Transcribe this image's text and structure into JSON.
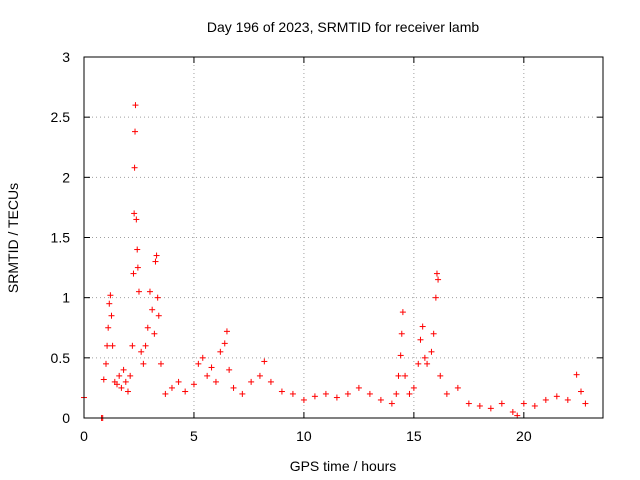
{
  "chart_data": {
    "type": "scatter",
    "title": "Day 196 of 2023, SRMTID for receiver lamb",
    "xlabel": "GPS time / hours",
    "ylabel": "SRMTID / TECUs",
    "xlim": [
      0,
      23.6
    ],
    "ylim": [
      0,
      3
    ],
    "xticks": [
      0,
      5,
      10,
      15,
      20
    ],
    "yticks": [
      0,
      0.5,
      1,
      1.5,
      2,
      2.5,
      3
    ],
    "xtick_labels": [
      "0",
      "5",
      "10",
      "15",
      "20"
    ],
    "ytick_labels": [
      "0",
      "0.5",
      "1",
      "1.5",
      "2",
      "2.5",
      "3"
    ],
    "grid": true,
    "marker": "+",
    "series": [
      {
        "name": "SRMTID",
        "color": "#ff0000",
        "points": [
          [
            0.0,
            0.17
          ],
          [
            0.8,
            0.0
          ],
          [
            0.85,
            0.0
          ],
          [
            0.9,
            0.32
          ],
          [
            1.0,
            0.45
          ],
          [
            1.05,
            0.6
          ],
          [
            1.1,
            0.75
          ],
          [
            1.15,
            0.95
          ],
          [
            1.2,
            1.02
          ],
          [
            1.25,
            0.85
          ],
          [
            1.3,
            0.6
          ],
          [
            1.4,
            0.3
          ],
          [
            1.5,
            0.28
          ],
          [
            1.6,
            0.35
          ],
          [
            1.7,
            0.25
          ],
          [
            1.8,
            0.4
          ],
          [
            1.9,
            0.3
          ],
          [
            2.0,
            0.22
          ],
          [
            2.1,
            0.35
          ],
          [
            2.2,
            0.6
          ],
          [
            2.25,
            1.2
          ],
          [
            2.28,
            1.7
          ],
          [
            2.3,
            2.08
          ],
          [
            2.32,
            2.38
          ],
          [
            2.34,
            2.6
          ],
          [
            2.38,
            1.65
          ],
          [
            2.42,
            1.4
          ],
          [
            2.45,
            1.25
          ],
          [
            2.5,
            1.05
          ],
          [
            2.6,
            0.55
          ],
          [
            2.7,
            0.45
          ],
          [
            2.8,
            0.6
          ],
          [
            2.9,
            0.75
          ],
          [
            3.0,
            1.05
          ],
          [
            3.1,
            0.9
          ],
          [
            3.2,
            0.7
          ],
          [
            3.25,
            1.3
          ],
          [
            3.3,
            1.35
          ],
          [
            3.35,
            1.0
          ],
          [
            3.4,
            0.85
          ],
          [
            3.5,
            0.45
          ],
          [
            3.7,
            0.2
          ],
          [
            4.0,
            0.25
          ],
          [
            4.3,
            0.3
          ],
          [
            4.6,
            0.22
          ],
          [
            5.0,
            0.28
          ],
          [
            5.2,
            0.45
          ],
          [
            5.4,
            0.5
          ],
          [
            5.6,
            0.35
          ],
          [
            5.8,
            0.42
          ],
          [
            6.0,
            0.3
          ],
          [
            6.2,
            0.55
          ],
          [
            6.4,
            0.62
          ],
          [
            6.5,
            0.72
          ],
          [
            6.6,
            0.4
          ],
          [
            6.8,
            0.25
          ],
          [
            7.2,
            0.2
          ],
          [
            7.6,
            0.3
          ],
          [
            8.0,
            0.35
          ],
          [
            8.2,
            0.47
          ],
          [
            8.5,
            0.3
          ],
          [
            9.0,
            0.22
          ],
          [
            9.5,
            0.2
          ],
          [
            10.0,
            0.15
          ],
          [
            10.5,
            0.18
          ],
          [
            11.0,
            0.2
          ],
          [
            11.5,
            0.17
          ],
          [
            12.0,
            0.2
          ],
          [
            12.5,
            0.25
          ],
          [
            13.0,
            0.2
          ],
          [
            13.5,
            0.15
          ],
          [
            14.0,
            0.12
          ],
          [
            14.2,
            0.2
          ],
          [
            14.3,
            0.35
          ],
          [
            14.4,
            0.52
          ],
          [
            14.45,
            0.7
          ],
          [
            14.5,
            0.88
          ],
          [
            14.6,
            0.35
          ],
          [
            14.8,
            0.2
          ],
          [
            15.0,
            0.25
          ],
          [
            15.2,
            0.45
          ],
          [
            15.3,
            0.65
          ],
          [
            15.4,
            0.76
          ],
          [
            15.5,
            0.5
          ],
          [
            15.6,
            0.45
          ],
          [
            15.8,
            0.55
          ],
          [
            15.9,
            0.7
          ],
          [
            16.0,
            1.0
          ],
          [
            16.05,
            1.2
          ],
          [
            16.1,
            1.15
          ],
          [
            16.2,
            0.35
          ],
          [
            16.5,
            0.2
          ],
          [
            17.0,
            0.25
          ],
          [
            17.5,
            0.12
          ],
          [
            18.0,
            0.1
          ],
          [
            18.5,
            0.08
          ],
          [
            19.0,
            0.12
          ],
          [
            19.5,
            0.05
          ],
          [
            19.7,
            0.02
          ],
          [
            20.0,
            0.12
          ],
          [
            20.5,
            0.1
          ],
          [
            21.0,
            0.15
          ],
          [
            21.5,
            0.18
          ],
          [
            22.0,
            0.15
          ],
          [
            22.4,
            0.36
          ],
          [
            22.6,
            0.22
          ],
          [
            22.8,
            0.12
          ]
        ]
      }
    ]
  }
}
